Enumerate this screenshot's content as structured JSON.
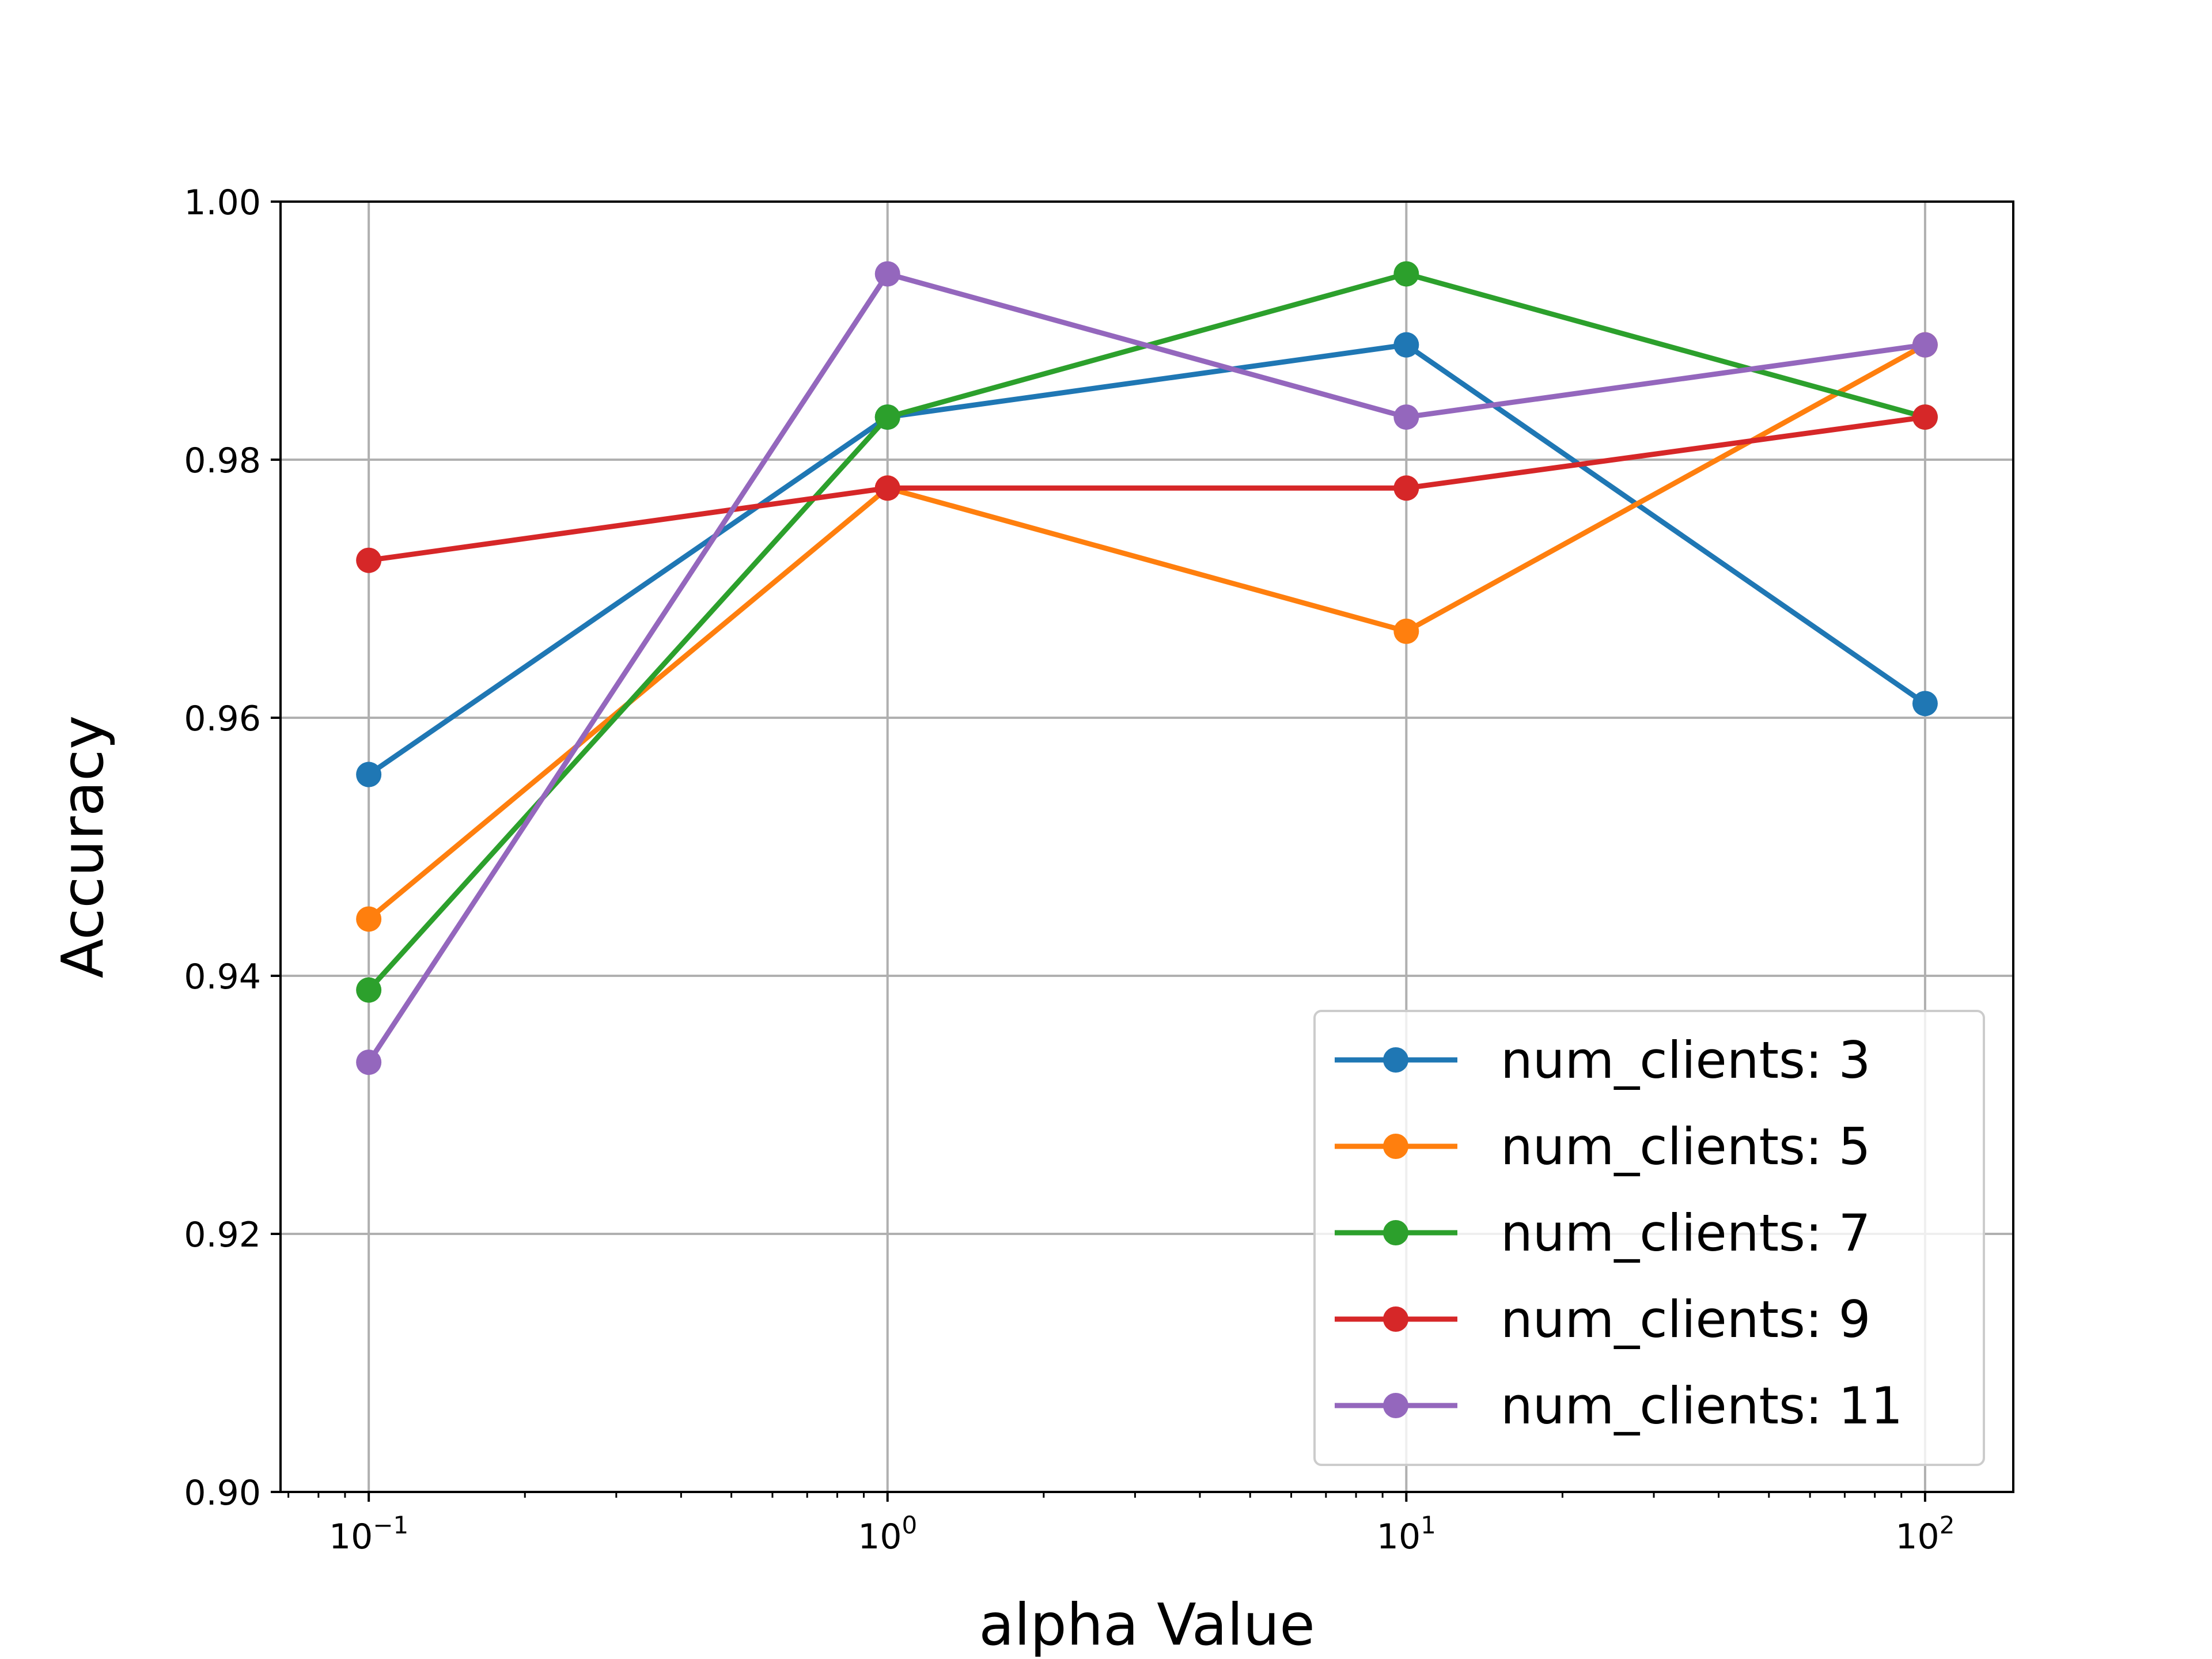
{
  "chart_data": {
    "type": "line",
    "title": "",
    "xlabel": "alpha Value",
    "ylabel": "Accuracy",
    "xscale": "log",
    "x": [
      0.1,
      1,
      10,
      100
    ],
    "xtick_labels": [
      {
        "base": "10",
        "exp": "−1"
      },
      {
        "base": "10",
        "exp": "0"
      },
      {
        "base": "10",
        "exp": "1"
      },
      {
        "base": "10",
        "exp": "2"
      }
    ],
    "xlim": [
      0.0676,
      147.9
    ],
    "ylim": [
      0.9,
      1.0
    ],
    "yticks": [
      "0.90",
      "0.92",
      "0.94",
      "0.96",
      "0.98",
      "1.00"
    ],
    "grid": true,
    "legend_position": "lower-right",
    "series": [
      {
        "name": "num_clients: 3",
        "color": "#1f77b4",
        "values": [
          0.9556,
          0.9833,
          0.9889,
          0.9611
        ]
      },
      {
        "name": "num_clients: 5",
        "color": "#ff7f0e",
        "values": [
          0.9444,
          0.9778,
          0.9667,
          0.9889
        ]
      },
      {
        "name": "num_clients: 7",
        "color": "#2ca02c",
        "values": [
          0.9389,
          0.9833,
          0.9944,
          0.9833
        ]
      },
      {
        "name": "num_clients: 9",
        "color": "#d62728",
        "values": [
          0.9722,
          0.9778,
          0.9778,
          0.9833
        ]
      },
      {
        "name": "num_clients: 11",
        "color": "#9467bd",
        "values": [
          0.9333,
          0.9944,
          0.9833,
          0.9889
        ]
      }
    ]
  }
}
